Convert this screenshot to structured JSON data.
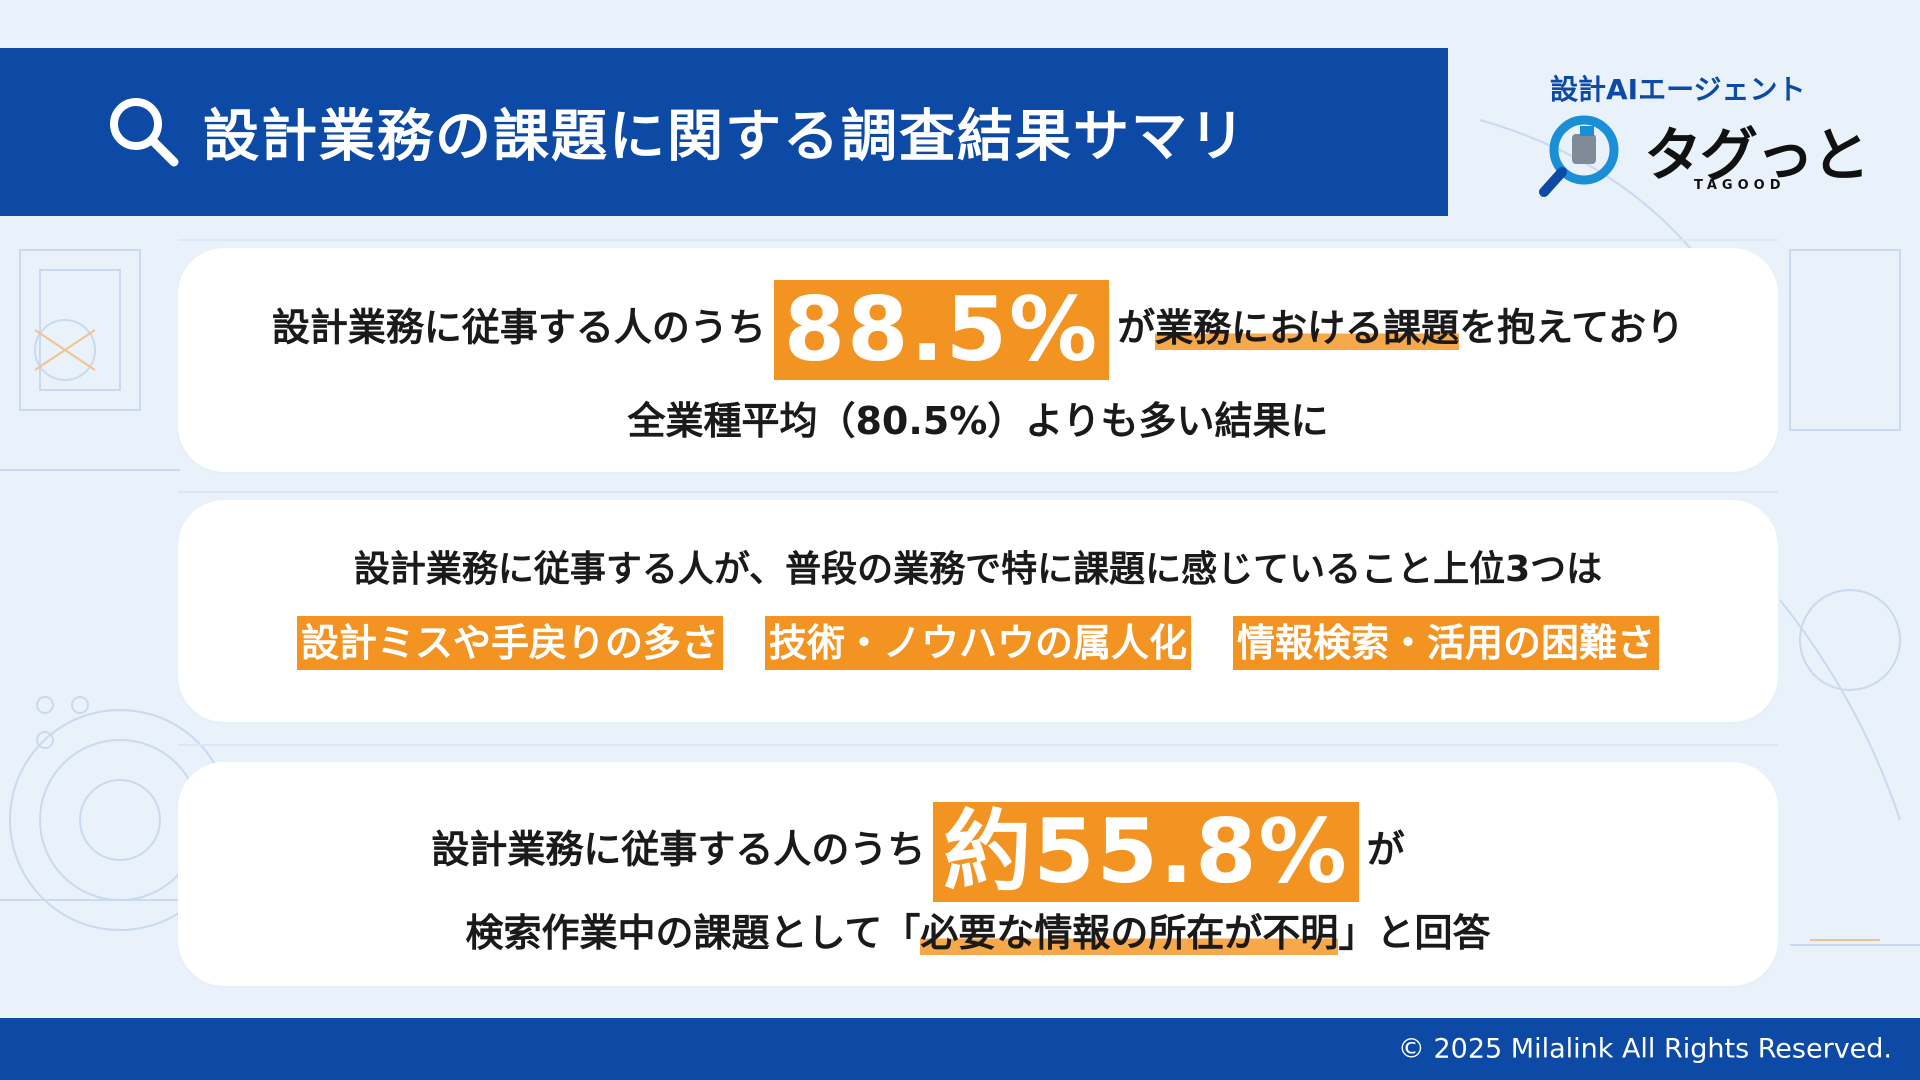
{
  "header": {
    "title": "設計業務の課題に関する調査結果サマリ",
    "icon": "search-icon"
  },
  "logo": {
    "subtitle": "設計AIエージェント",
    "name": "タグっと",
    "roman": "TAGOOD"
  },
  "card1": {
    "prefix": "設計業務に従事する人のうち",
    "stat": "88.5%",
    "mid": "が",
    "highlight": "業務における課題",
    "suffix": "を抱えており",
    "line2": "全業種平均（80.5%）よりも多い結果に"
  },
  "card2": {
    "heading": "設計業務に従事する人が、普段の業務で特に課題に感じていること上位3つは",
    "items": [
      "設計ミスや手戻りの多さ",
      "技術・ノウハウの属人化",
      "情報検索・活用の困難さ"
    ]
  },
  "card3": {
    "prefix": "設計業務に従事する人のうち",
    "stat": "約55.8%",
    "mid": "が",
    "line2_prefix": "検索作業中の課題として「",
    "highlight": "必要な情報の所在が不明",
    "line2_suffix": "」と回答"
  },
  "footer": {
    "copyright": "© 2025 Milalink All Rights Reserved."
  },
  "colors": {
    "primary": "#0c4aa6",
    "accent": "#f39422",
    "background": "#e9f2fb"
  }
}
